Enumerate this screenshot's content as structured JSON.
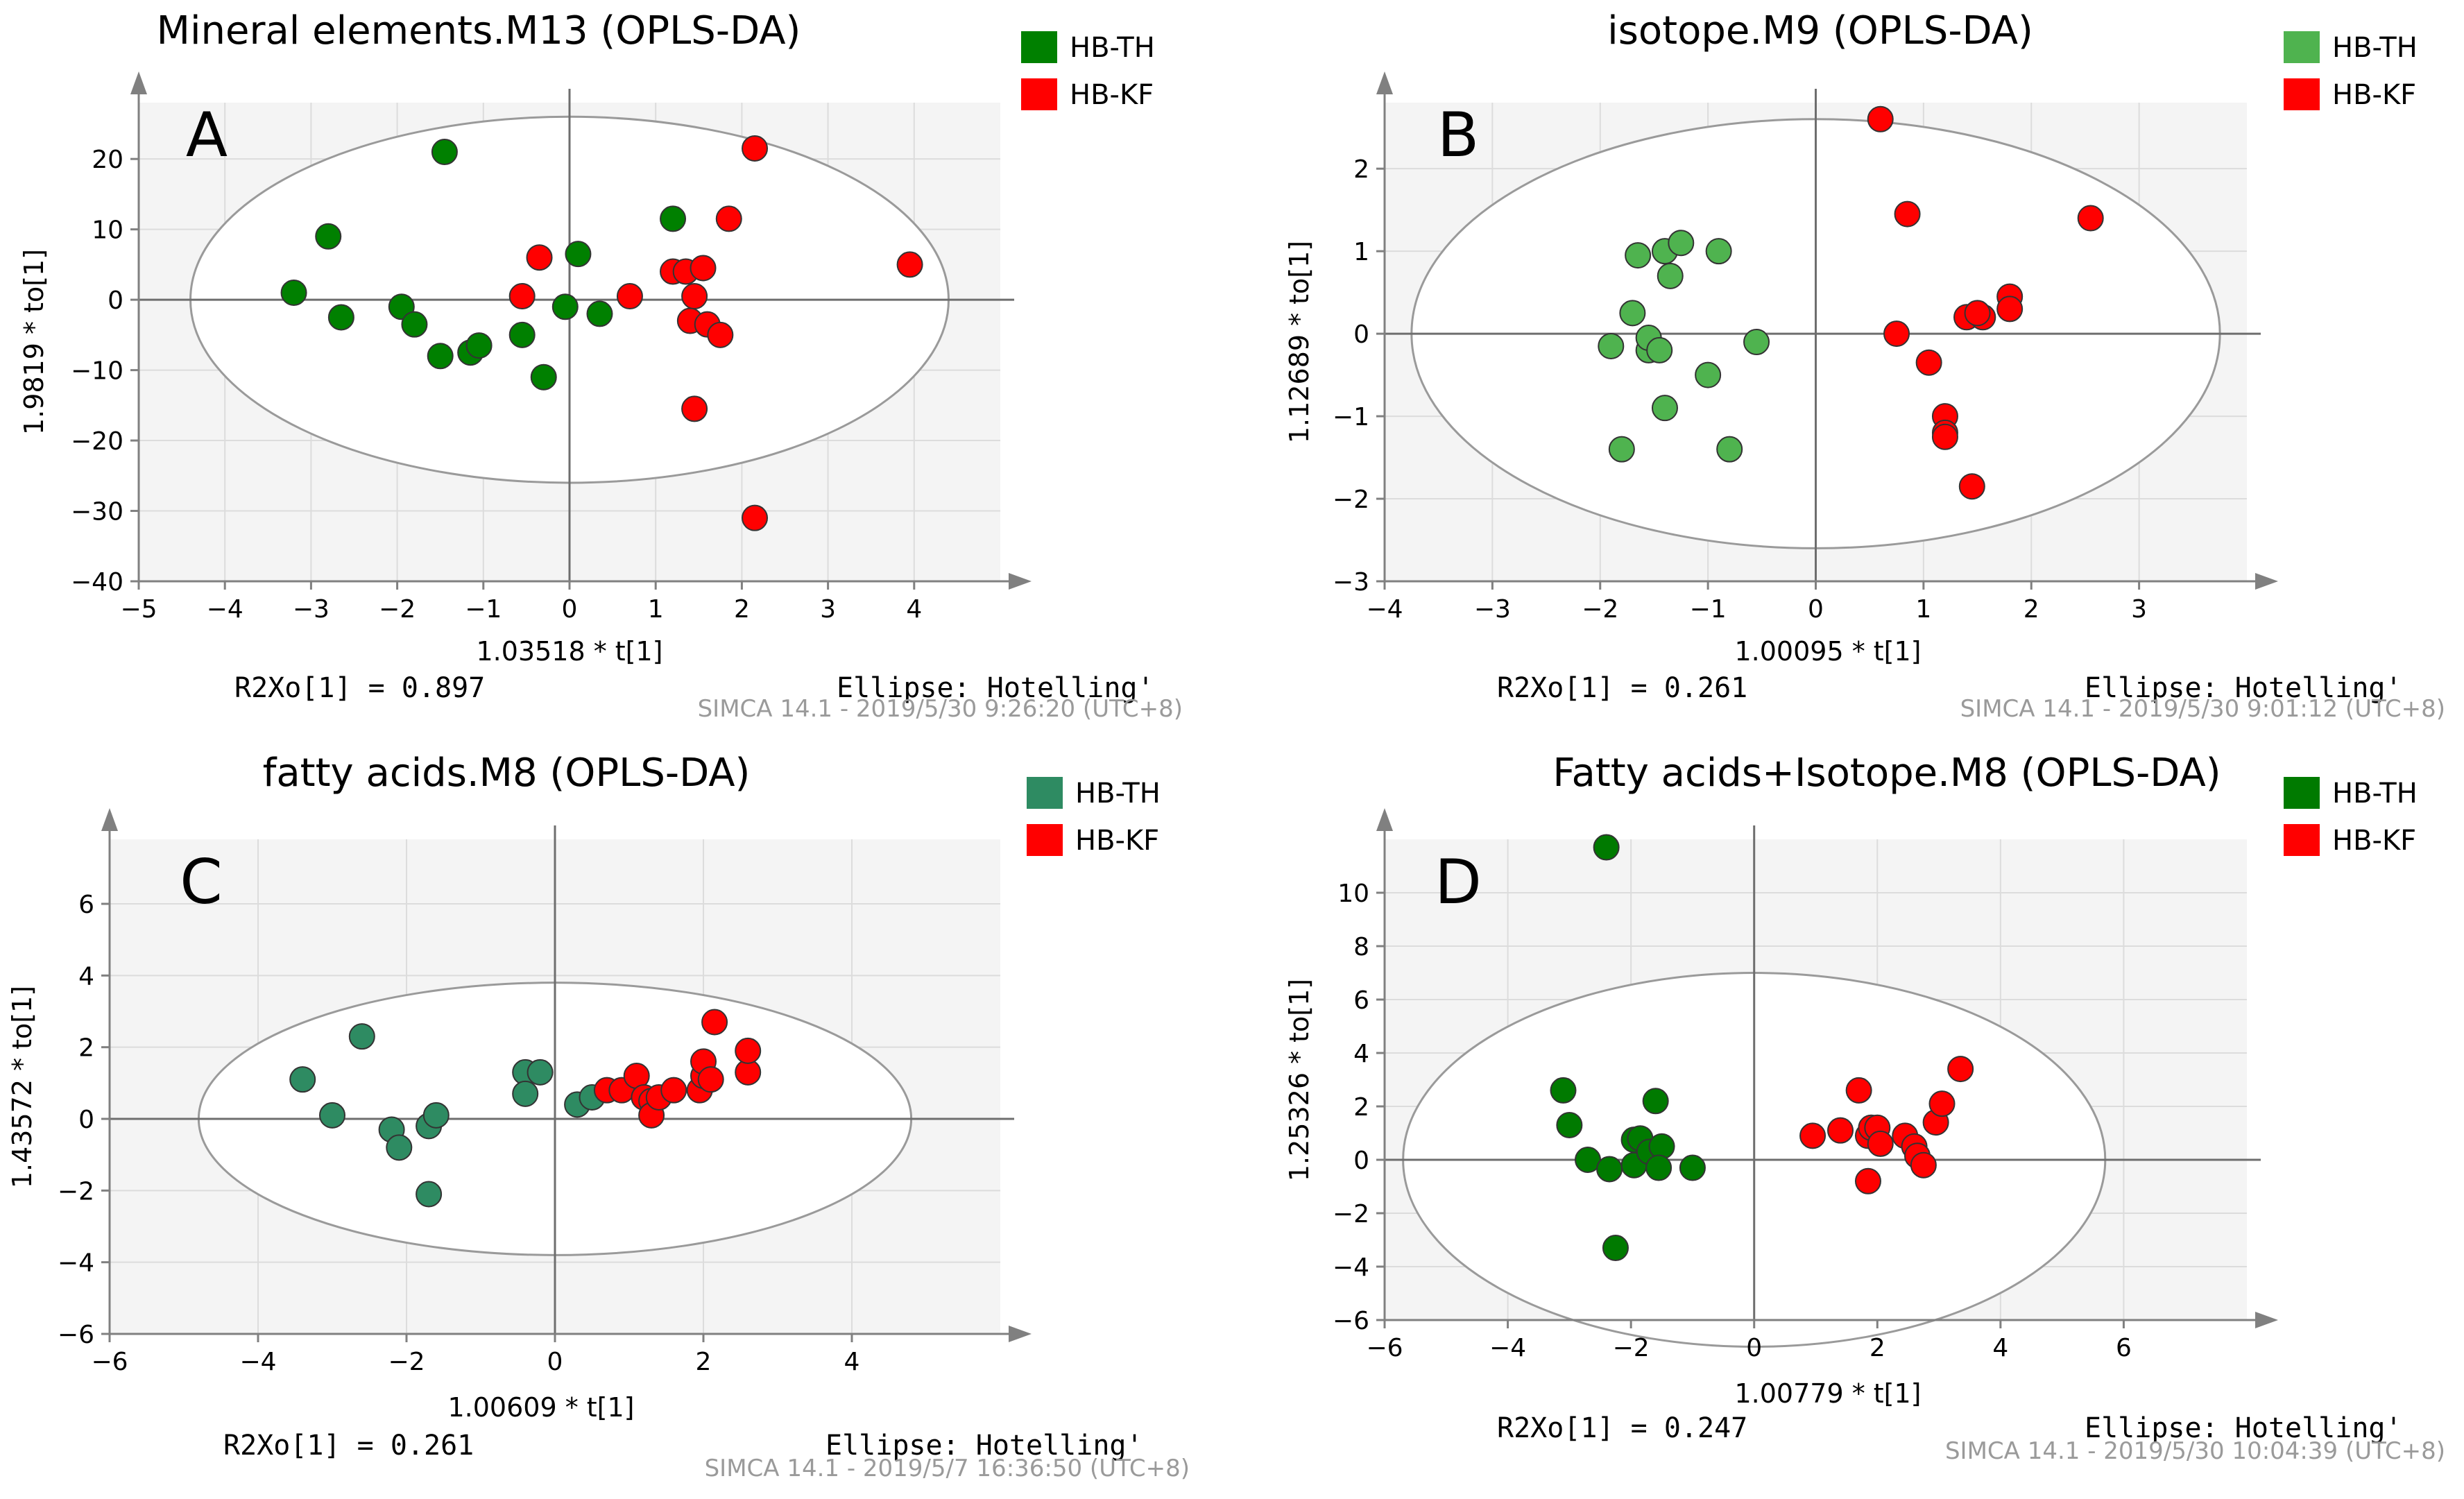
{
  "figure": {
    "panels": [
      {
        "id": "A",
        "label": "A",
        "title": "Mineral elements.M13 (OPLS-DA)",
        "r2xo_text": "R2Xo[1] = 0.897",
        "ellipse_text": "Ellipse: Hotelling'",
        "simca_text": "SIMCA 14.1 - 2019/5/30 9:26:20 (UTC+8)",
        "legend": [
          {
            "name": "HB-TH",
            "color": "#008000"
          },
          {
            "name": "HB-KF",
            "color": "#ff0000"
          }
        ]
      },
      {
        "id": "B",
        "label": "B",
        "title": "isotope.M9 (OPLS-DA)",
        "r2xo_text": "R2Xo[1] = 0.261",
        "ellipse_text": "Ellipse: Hotelling'",
        "simca_text": "SIMCA 14.1 - 2019/5/30 9:01:12 (UTC+8)",
        "legend": [
          {
            "name": "HB-TH",
            "color": "#4fb34f"
          },
          {
            "name": "HB-KF",
            "color": "#ff0000"
          }
        ]
      },
      {
        "id": "C",
        "label": "C",
        "title": "fatty acids.M8 (OPLS-DA)",
        "r2xo_text": "R2Xo[1] = 0.261",
        "ellipse_text": "Ellipse: Hotelling'",
        "simca_text": "SIMCA 14.1 - 2019/5/7 16:36:50 (UTC+8)",
        "legend": [
          {
            "name": "HB-TH",
            "color": "#2e8b62"
          },
          {
            "name": "HB-KF",
            "color": "#ff0000"
          }
        ]
      },
      {
        "id": "D",
        "label": "D",
        "title": "Fatty acids+Isotope.M8 (OPLS-DA)",
        "r2xo_text": "R2Xo[1] = 0.247",
        "ellipse_text": "Ellipse: Hotelling'",
        "simca_text": "SIMCA 14.1 - 2019/5/30 10:04:39 (UTC+8)",
        "legend": [
          {
            "name": "HB-TH",
            "color": "#007a00"
          },
          {
            "name": "HB-KF",
            "color": "#ff0000"
          }
        ]
      }
    ]
  },
  "chart_data": [
    {
      "type": "scatter",
      "panel": "A",
      "title": "Mineral elements.M13 (OPLS-DA)",
      "xlabel": "1.03518 * t[1]",
      "ylabel": "1.9819 * to[1]",
      "xlim": [
        -5,
        5
      ],
      "ylim": [
        -40,
        28
      ],
      "xticks": [
        -5,
        -4,
        -3,
        -2,
        -1,
        0,
        1,
        2,
        3,
        4
      ],
      "yticks": [
        -40,
        -30,
        -20,
        -10,
        0,
        10,
        20
      ],
      "ellipse": {
        "rx": 4.4,
        "ry": 26
      },
      "grid": true,
      "series": [
        {
          "name": "HB-TH",
          "color": "#008000",
          "points": [
            [
              -3.2,
              1
            ],
            [
              -2.8,
              9
            ],
            [
              -2.65,
              -2.5
            ],
            [
              -1.95,
              -1
            ],
            [
              -1.8,
              -3.5
            ],
            [
              -1.45,
              21
            ],
            [
              -1.5,
              -8
            ],
            [
              -1.15,
              -7.5
            ],
            [
              -1.05,
              -6.5
            ],
            [
              -0.55,
              -5
            ],
            [
              -0.3,
              -11
            ],
            [
              -0.05,
              -1
            ],
            [
              0.1,
              6.5
            ],
            [
              0.35,
              -2
            ],
            [
              1.2,
              11.5
            ]
          ]
        },
        {
          "name": "HB-KF",
          "color": "#ff0000",
          "points": [
            [
              -0.35,
              6
            ],
            [
              -0.55,
              0.5
            ],
            [
              0.7,
              0.5
            ],
            [
              1.2,
              4
            ],
            [
              1.35,
              4
            ],
            [
              1.55,
              4.5
            ],
            [
              1.4,
              -3
            ],
            [
              1.45,
              0.5
            ],
            [
              1.6,
              -3.5
            ],
            [
              1.75,
              -5
            ],
            [
              1.85,
              11.5
            ],
            [
              2.15,
              21.5
            ],
            [
              1.45,
              -15.5
            ],
            [
              2.15,
              -31
            ],
            [
              3.95,
              5
            ]
          ]
        }
      ]
    },
    {
      "type": "scatter",
      "panel": "B",
      "title": "isotope.M9 (OPLS-DA)",
      "xlabel": "1.00095 * t[1]",
      "ylabel": "1.12689 * to[1]",
      "xlim": [
        -4,
        4
      ],
      "ylim": [
        -3,
        2.8
      ],
      "xticks": [
        -4,
        -3,
        -2,
        -1,
        0,
        1,
        2,
        3
      ],
      "yticks": [
        -3,
        -2,
        -1,
        0,
        1,
        2
      ],
      "ellipse": {
        "rx": 3.75,
        "ry": 2.6
      },
      "grid": true,
      "series": [
        {
          "name": "HB-TH",
          "color": "#4fb34f",
          "points": [
            [
              -1.9,
              -0.15
            ],
            [
              -1.7,
              0.25
            ],
            [
              -1.65,
              0.95
            ],
            [
              -1.55,
              -0.2
            ],
            [
              -1.55,
              -0.05
            ],
            [
              -1.45,
              -0.2
            ],
            [
              -1.4,
              1.0
            ],
            [
              -1.35,
              0.7
            ],
            [
              -1.25,
              1.1
            ],
            [
              -0.9,
              1.0
            ],
            [
              -1.4,
              -0.9
            ],
            [
              -1.8,
              -1.4
            ],
            [
              -1.0,
              -0.5
            ],
            [
              -0.8,
              -1.4
            ],
            [
              -0.55,
              -0.1
            ]
          ]
        },
        {
          "name": "HB-KF",
          "color": "#ff0000",
          "points": [
            [
              0.6,
              2.6
            ],
            [
              0.85,
              1.45
            ],
            [
              0.75,
              0.0
            ],
            [
              1.05,
              -0.35
            ],
            [
              1.2,
              -1.0
            ],
            [
              1.2,
              -1.2
            ],
            [
              1.2,
              -1.25
            ],
            [
              1.45,
              -1.85
            ],
            [
              1.4,
              0.2
            ],
            [
              1.55,
              0.2
            ],
            [
              1.5,
              0.25
            ],
            [
              1.8,
              0.45
            ],
            [
              1.8,
              0.3
            ],
            [
              2.55,
              1.4
            ]
          ]
        }
      ]
    },
    {
      "type": "scatter",
      "panel": "C",
      "title": "fatty acids.M8 (OPLS-DA)",
      "xlabel": "1.00609 * t[1]",
      "ylabel": "1.43572 * to[1]",
      "xlim": [
        -6,
        6
      ],
      "ylim": [
        -6,
        7.8
      ],
      "xticks": [
        -6,
        -4,
        -2,
        0,
        2,
        4
      ],
      "yticks": [
        -6,
        -4,
        -2,
        0,
        2,
        4,
        6
      ],
      "ellipse": {
        "rx": 4.8,
        "ry": 3.8
      },
      "grid": true,
      "series": [
        {
          "name": "HB-TH",
          "color": "#2e8b62",
          "points": [
            [
              -3.4,
              1.1
            ],
            [
              -3.0,
              0.1
            ],
            [
              -2.6,
              2.3
            ],
            [
              -2.2,
              -0.3
            ],
            [
              -2.1,
              -0.8
            ],
            [
              -1.7,
              -0.2
            ],
            [
              -1.6,
              0.1
            ],
            [
              -1.7,
              -2.1
            ],
            [
              -0.4,
              1.3
            ],
            [
              -0.4,
              0.7
            ],
            [
              -0.2,
              1.3
            ],
            [
              0.3,
              0.4
            ],
            [
              0.5,
              0.6
            ]
          ]
        },
        {
          "name": "HB-KF",
          "color": "#ff0000",
          "points": [
            [
              0.7,
              0.8
            ],
            [
              0.9,
              0.8
            ],
            [
              1.1,
              1.2
            ],
            [
              1.2,
              0.6
            ],
            [
              1.3,
              0.5
            ],
            [
              1.3,
              0.1
            ],
            [
              1.4,
              0.6
            ],
            [
              1.6,
              0.8
            ],
            [
              1.95,
              0.8
            ],
            [
              2.0,
              1.2
            ],
            [
              2.0,
              1.6
            ],
            [
              2.1,
              1.1
            ],
            [
              2.15,
              2.7
            ],
            [
              2.6,
              1.3
            ],
            [
              2.6,
              1.9
            ]
          ]
        }
      ]
    },
    {
      "type": "scatter",
      "panel": "D",
      "title": "Fatty acids+Isotope.M8 (OPLS-DA)",
      "xlabel": "1.00779 * t[1]",
      "ylabel": "1.25326 * to[1]",
      "xlim": [
        -6,
        8
      ],
      "ylim": [
        -6,
        12
      ],
      "xticks": [
        -6,
        -4,
        -2,
        0,
        2,
        4,
        6
      ],
      "yticks": [
        -6,
        -4,
        -2,
        0,
        2,
        4,
        6,
        8,
        10
      ],
      "ellipse": {
        "rx": 5.7,
        "ry": 7
      },
      "grid": true,
      "series": [
        {
          "name": "HB-TH",
          "color": "#007a00",
          "points": [
            [
              -2.4,
              11.7
            ],
            [
              -3.1,
              2.6
            ],
            [
              -3.0,
              1.3
            ],
            [
              -2.7,
              0.0
            ],
            [
              -2.35,
              -0.35
            ],
            [
              -2.25,
              -3.3
            ],
            [
              -1.95,
              0.75
            ],
            [
              -1.85,
              0.8
            ],
            [
              -1.95,
              -0.2
            ],
            [
              -1.7,
              0.3
            ],
            [
              -1.6,
              2.2
            ],
            [
              -1.5,
              0.5
            ],
            [
              -1.55,
              -0.3
            ],
            [
              -1.0,
              -0.3
            ]
          ]
        },
        {
          "name": "HB-KF",
          "color": "#ff0000",
          "points": [
            [
              0.95,
              0.9
            ],
            [
              1.4,
              1.1
            ],
            [
              1.7,
              2.6
            ],
            [
              1.85,
              0.9
            ],
            [
              1.9,
              1.2
            ],
            [
              2.0,
              1.2
            ],
            [
              2.05,
              0.6
            ],
            [
              1.85,
              -0.8
            ],
            [
              2.45,
              0.9
            ],
            [
              2.6,
              0.5
            ],
            [
              2.65,
              0.15
            ],
            [
              2.75,
              -0.2
            ],
            [
              2.95,
              1.4
            ],
            [
              3.05,
              2.1
            ],
            [
              3.35,
              3.4
            ]
          ]
        }
      ]
    }
  ]
}
